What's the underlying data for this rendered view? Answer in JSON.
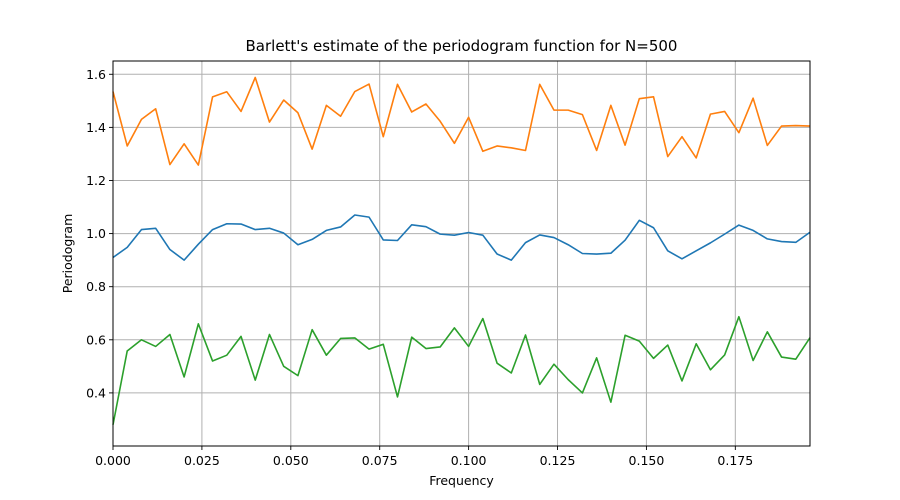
{
  "chart_data": {
    "type": "line",
    "title": "Barlett's estimate of the periodogram function for N=500",
    "xlabel": "Frequency",
    "ylabel": "Periodogram",
    "xlim": [
      0,
      0.196
    ],
    "ylim": [
      0.2,
      1.65
    ],
    "grid": true,
    "x_ticks": [
      0.0,
      0.025,
      0.05,
      0.075,
      0.1,
      0.125,
      0.15,
      0.175
    ],
    "x_tick_labels": [
      "0.000",
      "0.025",
      "0.050",
      "0.075",
      "0.100",
      "0.125",
      "0.150",
      "0.175"
    ],
    "y_ticks": [
      0.4,
      0.6,
      0.8,
      1.0,
      1.2,
      1.4,
      1.6
    ],
    "y_tick_labels": [
      "0.4",
      "0.6",
      "0.8",
      "1.0",
      "1.2",
      "1.4",
      "1.6"
    ],
    "x": [
      0.0,
      0.004,
      0.008,
      0.012,
      0.016,
      0.02,
      0.024,
      0.028,
      0.032,
      0.036,
      0.04,
      0.044,
      0.048,
      0.052,
      0.056,
      0.06,
      0.064,
      0.068,
      0.072,
      0.076,
      0.08,
      0.084,
      0.088,
      0.092,
      0.096,
      0.1,
      0.104,
      0.108,
      0.112,
      0.116,
      0.12,
      0.124,
      0.128,
      0.132,
      0.136,
      0.14,
      0.144,
      0.148,
      0.152,
      0.156,
      0.16,
      0.164,
      0.168,
      0.172,
      0.176,
      0.18,
      0.184,
      0.188,
      0.192,
      0.196
    ],
    "series": [
      {
        "color": "#1f77b4",
        "values": [
          0.91,
          0.948,
          1.015,
          1.02,
          0.94,
          0.9,
          0.96,
          1.015,
          1.037,
          1.036,
          1.015,
          1.02,
          1.002,
          0.958,
          0.978,
          1.012,
          1.025,
          1.07,
          1.062,
          0.976,
          0.974,
          1.033,
          1.026,
          0.998,
          0.994,
          1.004,
          0.994,
          0.923,
          0.9,
          0.966,
          0.995,
          0.985,
          0.958,
          0.925,
          0.923,
          0.926,
          0.975,
          1.05,
          1.022,
          0.935,
          0.905,
          0.935,
          0.965,
          0.998,
          1.032,
          1.012,
          0.98,
          0.97,
          0.967,
          1.005
        ]
      },
      {
        "color": "#ff7f0e",
        "values": [
          1.535,
          1.33,
          1.43,
          1.47,
          1.26,
          1.338,
          1.258,
          1.515,
          1.534,
          1.46,
          1.588,
          1.42,
          1.503,
          1.455,
          1.318,
          1.483,
          1.442,
          1.535,
          1.563,
          1.365,
          1.562,
          1.458,
          1.488,
          1.423,
          1.34,
          1.438,
          1.31,
          1.33,
          1.323,
          1.313,
          1.562,
          1.465,
          1.465,
          1.448,
          1.313,
          1.483,
          1.333,
          1.508,
          1.515,
          1.29,
          1.365,
          1.285,
          1.45,
          1.46,
          1.38,
          1.51,
          1.332,
          1.405,
          1.407,
          1.405
        ]
      },
      {
        "color": "#2ca02c",
        "values": [
          0.28,
          0.558,
          0.6,
          0.575,
          0.62,
          0.46,
          0.66,
          0.52,
          0.542,
          0.613,
          0.448,
          0.62,
          0.5,
          0.465,
          0.638,
          0.542,
          0.605,
          0.607,
          0.565,
          0.583,
          0.385,
          0.61,
          0.567,
          0.573,
          0.645,
          0.575,
          0.68,
          0.512,
          0.475,
          0.618,
          0.432,
          0.508,
          0.45,
          0.4,
          0.532,
          0.365,
          0.617,
          0.595,
          0.53,
          0.58,
          0.445,
          0.585,
          0.487,
          0.543,
          0.687,
          0.522,
          0.63,
          0.535,
          0.527,
          0.608
        ]
      }
    ]
  }
}
